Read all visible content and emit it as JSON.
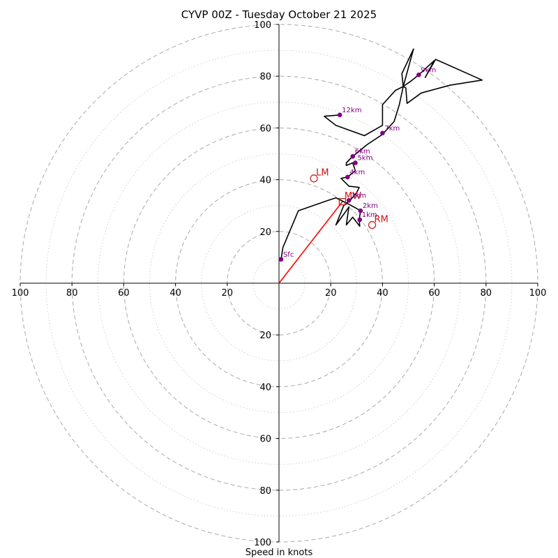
{
  "chart_data": {
    "type": "hodograph",
    "title": "CYVP 00Z - Tuesday October 21 2025",
    "xlabel": "Speed in knots",
    "range": 100,
    "major_rings": [
      20,
      40,
      60,
      80,
      100
    ],
    "minor_rings": [
      10,
      30,
      50,
      70,
      90
    ],
    "tick_values": [
      20,
      40,
      60,
      80,
      100
    ],
    "tick_labels": [
      "20",
      "40",
      "60",
      "80",
      "100"
    ],
    "colors": {
      "trace": "#000000",
      "markers": "#800080",
      "motion": "#cc1111",
      "shear_vector": "#ff0000",
      "rings": "#b0b0b0"
    },
    "trace": [
      [
        0.8,
        9.2
      ],
      [
        1.5,
        13.8
      ],
      [
        7.5,
        28
      ],
      [
        19,
        32
      ],
      [
        22,
        33
      ],
      [
        27,
        30.5
      ],
      [
        31.5,
        28
      ],
      [
        31,
        24.5
      ],
      [
        31.2,
        22
      ],
      [
        28.5,
        25.5
      ],
      [
        26,
        22.5
      ],
      [
        27,
        29.5
      ],
      [
        26,
        28
      ],
      [
        22,
        22.5
      ],
      [
        25,
        30
      ],
      [
        27.5,
        32
      ],
      [
        30,
        35
      ],
      [
        31,
        37
      ],
      [
        27,
        37.5
      ],
      [
        24,
        40.5
      ],
      [
        26.5,
        41
      ],
      [
        29.5,
        43.5
      ],
      [
        28.5,
        46.5
      ],
      [
        26,
        45.5
      ],
      [
        26,
        46.5
      ],
      [
        28.5,
        49
      ],
      [
        34,
        53.5
      ],
      [
        40,
        57.5
      ],
      [
        44.5,
        62.5
      ],
      [
        46.5,
        69
      ],
      [
        48,
        76
      ],
      [
        47.5,
        81
      ],
      [
        52,
        90.5
      ],
      [
        48,
        76
      ],
      [
        51.5,
        78.5
      ],
      [
        54,
        80.5
      ],
      [
        60,
        86
      ],
      [
        56.5,
        79.5
      ],
      [
        60.5,
        86.5
      ],
      [
        78.5,
        78.5
      ],
      [
        66,
        76.5
      ],
      [
        55,
        73.5
      ],
      [
        49.5,
        69.5
      ],
      [
        49,
        75.5
      ],
      [
        48,
        76
      ],
      [
        45,
        74.5
      ],
      [
        40,
        69
      ],
      [
        40,
        61
      ],
      [
        33,
        57
      ],
      [
        22,
        61
      ],
      [
        17.5,
        64.5
      ],
      [
        23.5,
        65
      ]
    ],
    "height_markers": [
      {
        "label": "Sfc",
        "u": 0.8,
        "v": 9.2
      },
      {
        "label": "1km",
        "u": 31.2,
        "v": 24.5
      },
      {
        "label": "2km",
        "u": 31.5,
        "v": 28
      },
      {
        "label": "3km",
        "u": 27,
        "v": 32
      },
      {
        "label": "4km",
        "u": 26.5,
        "v": 41
      },
      {
        "label": "5km",
        "u": 29.5,
        "v": 46.5
      },
      {
        "label": "6km",
        "u": 28.5,
        "v": 49
      },
      {
        "label": "7km",
        "u": 40,
        "v": 58
      },
      {
        "label": "9km",
        "u": 54,
        "v": 80.5
      },
      {
        "label": "12km",
        "u": 23.5,
        "v": 65
      }
    ],
    "storm_motion": [
      {
        "label": "LM",
        "u": 13.5,
        "v": 40.5,
        "marker": "circle"
      },
      {
        "label": "RM",
        "u": 36,
        "v": 22.5,
        "marker": "circle"
      },
      {
        "label": "MW",
        "u": 24.5,
        "v": 31.5,
        "marker": "square"
      }
    ],
    "shear_vector": {
      "from": [
        0,
        0
      ],
      "to": [
        24.5,
        31.5
      ]
    }
  }
}
